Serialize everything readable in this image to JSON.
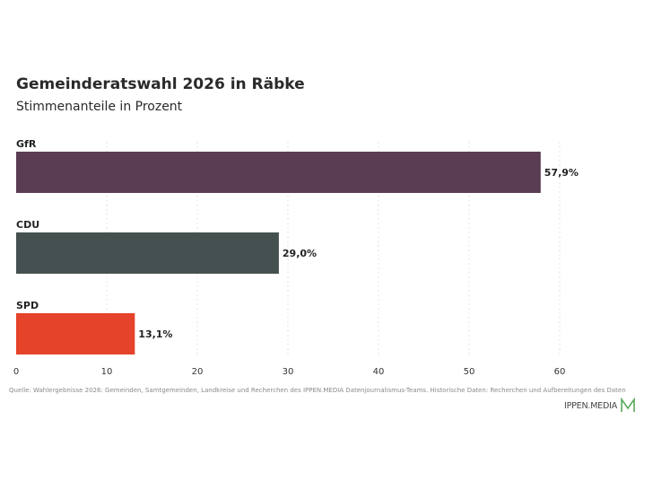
{
  "chart_data": {
    "type": "bar",
    "orientation": "horizontal",
    "title": "Gemeinderatswahl 2026 in Räbke",
    "subtitle": "Stimmenanteile in Prozent",
    "categories": [
      "GfR",
      "CDU",
      "SPD"
    ],
    "values": [
      57.9,
      29.0,
      13.1
    ],
    "value_labels": [
      "57,9%",
      "29,0%",
      "13,1%"
    ],
    "colors": [
      "#5a3d52",
      "#455150",
      "#e5432a"
    ],
    "xlim": [
      0,
      60
    ],
    "xticks": [
      0,
      10,
      20,
      30,
      40,
      50,
      60
    ],
    "xtick_labels": [
      "0",
      "10",
      "20",
      "30",
      "40",
      "50",
      "60"
    ],
    "grid": true
  },
  "source": "Quelle: Wahlergebnisse 2026: Gemeinden, Samtgemeinden, Landkreise und Recherchen des IPPEN.MEDIA Datenjournalismus-Teams. Historische Daten: Recherchen und Aufbereitungen des Daten",
  "brand": {
    "name": "IPPEN.MEDIA",
    "logo_icon": "ippen-media-m-logo",
    "logo_color": "#5aa85a"
  }
}
